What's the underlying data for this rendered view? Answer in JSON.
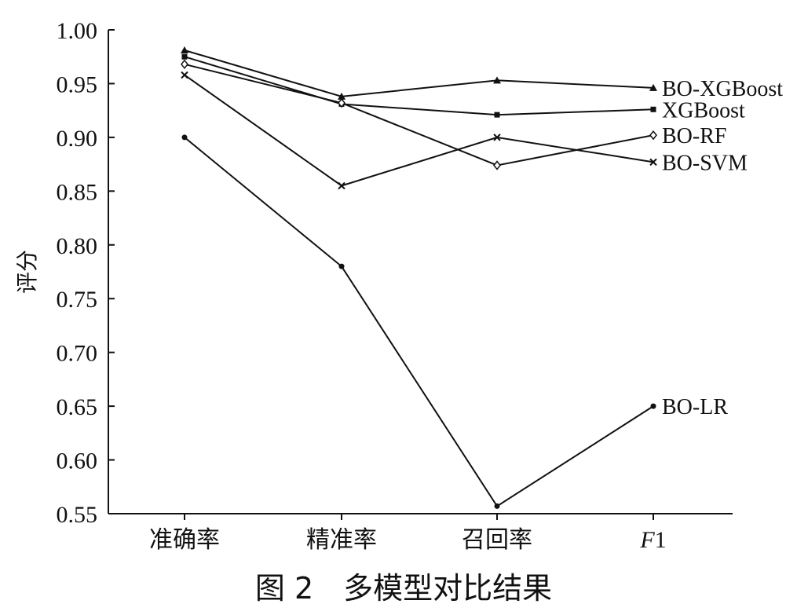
{
  "chart_data": {
    "type": "line",
    "title": "图 2　多模型对比结果",
    "xlabel": "",
    "ylabel": "评分",
    "ylim": [
      0.55,
      1.0
    ],
    "yticks": [
      "1.00",
      "0.95",
      "0.90",
      "0.85",
      "0.80",
      "0.75",
      "0.70",
      "0.65",
      "0.60",
      "0.55"
    ],
    "categories": [
      "准确率",
      "精准率",
      "召回率",
      "F1"
    ],
    "grid": false,
    "legend": "labels at line ends",
    "series": [
      {
        "name": "BO-XGBoost",
        "marker": "triangle",
        "values": [
          0.981,
          0.938,
          0.953,
          0.946
        ]
      },
      {
        "name": "XGBoost",
        "marker": "square",
        "values": [
          0.975,
          0.931,
          0.921,
          0.926
        ]
      },
      {
        "name": "BO-RF",
        "marker": "diamond",
        "values": [
          0.968,
          0.932,
          0.874,
          0.902
        ]
      },
      {
        "name": "BO-SVM",
        "marker": "x",
        "values": [
          0.958,
          0.855,
          0.9,
          0.877
        ]
      },
      {
        "name": "BO-LR",
        "marker": "dot",
        "values": [
          0.9,
          0.78,
          0.557,
          0.65
        ]
      }
    ]
  }
}
